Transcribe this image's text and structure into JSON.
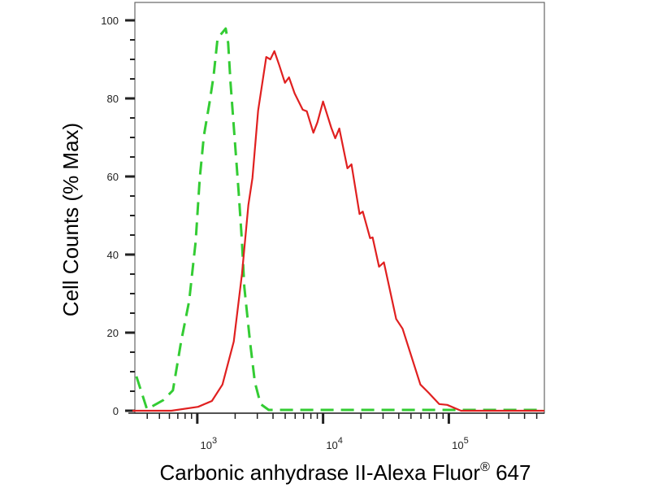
{
  "chart_data": {
    "type": "line",
    "title": "",
    "xlabel": {
      "main": "Carbonic anhydrase II-Alexa Fluor",
      "sup": "®",
      "suffix": " 647"
    },
    "ylabel": "Cell Counts (% Max)",
    "x_scale": "log",
    "xlim": [
      305,
      575000
    ],
    "ylim": [
      0,
      105
    ],
    "y_ticks": [
      0,
      20,
      40,
      60,
      80,
      100
    ],
    "y_tick_labels": [
      "0",
      "20",
      "40",
      "60",
      "80",
      "100"
    ],
    "x_ticks": [
      1000,
      10000,
      100000
    ],
    "x_tick_labels": [
      {
        "base": "10",
        "exp": "3"
      },
      {
        "base": "10",
        "exp": "4"
      },
      {
        "base": "10",
        "exp": "5"
      }
    ],
    "grid": false,
    "legend": "none",
    "series": [
      {
        "color": "#33cc33",
        "style": "dashed",
        "x": [
          328,
          398,
          536,
          640,
          743,
          861,
          971,
          1045,
          1127,
          1250,
          1347,
          1450,
          1683,
          1760,
          1840,
          1982,
          2134,
          2265,
          2367,
          2626,
          2871,
          3185,
          3696,
          575000
        ],
        "y": [
          8.8,
          0.4,
          2.7,
          5.2,
          17.7,
          28.1,
          43.3,
          59.4,
          70.4,
          78.8,
          85.8,
          95.4,
          97.9,
          94.2,
          83.8,
          69.8,
          55.8,
          43.3,
          31.7,
          17.7,
          7.3,
          1.7,
          0.2,
          0.2
        ]
      },
      {
        "color": "#e02020",
        "style": "solid",
        "x": [
          305,
          622,
          1015,
          1306,
          1585,
          1950,
          2265,
          2547,
          2746,
          3048,
          3535,
          3808,
          4102,
          4487,
          4977,
          5360,
          5943,
          6897,
          7430,
          8370,
          9020,
          10000,
          11610,
          12500,
          13460,
          15630,
          16830,
          19500,
          20700,
          23660,
          24770,
          27880,
          30480,
          38110,
          42890,
          59430,
          69030,
          83750,
          97000,
          125000,
          575000
        ],
        "y": [
          0,
          0,
          1.0,
          2.5,
          6.7,
          17.7,
          35.0,
          52.7,
          59.6,
          76.9,
          90.6,
          90.0,
          92.1,
          88.5,
          84.0,
          85.4,
          81.3,
          77.1,
          76.7,
          71.2,
          73.9,
          79.2,
          72.5,
          69.8,
          72.3,
          62.1,
          63.1,
          50.4,
          51.0,
          44.2,
          44.4,
          36.9,
          38.0,
          23.5,
          21.0,
          6.7,
          4.6,
          1.7,
          1.5,
          0,
          0
        ]
      }
    ]
  }
}
